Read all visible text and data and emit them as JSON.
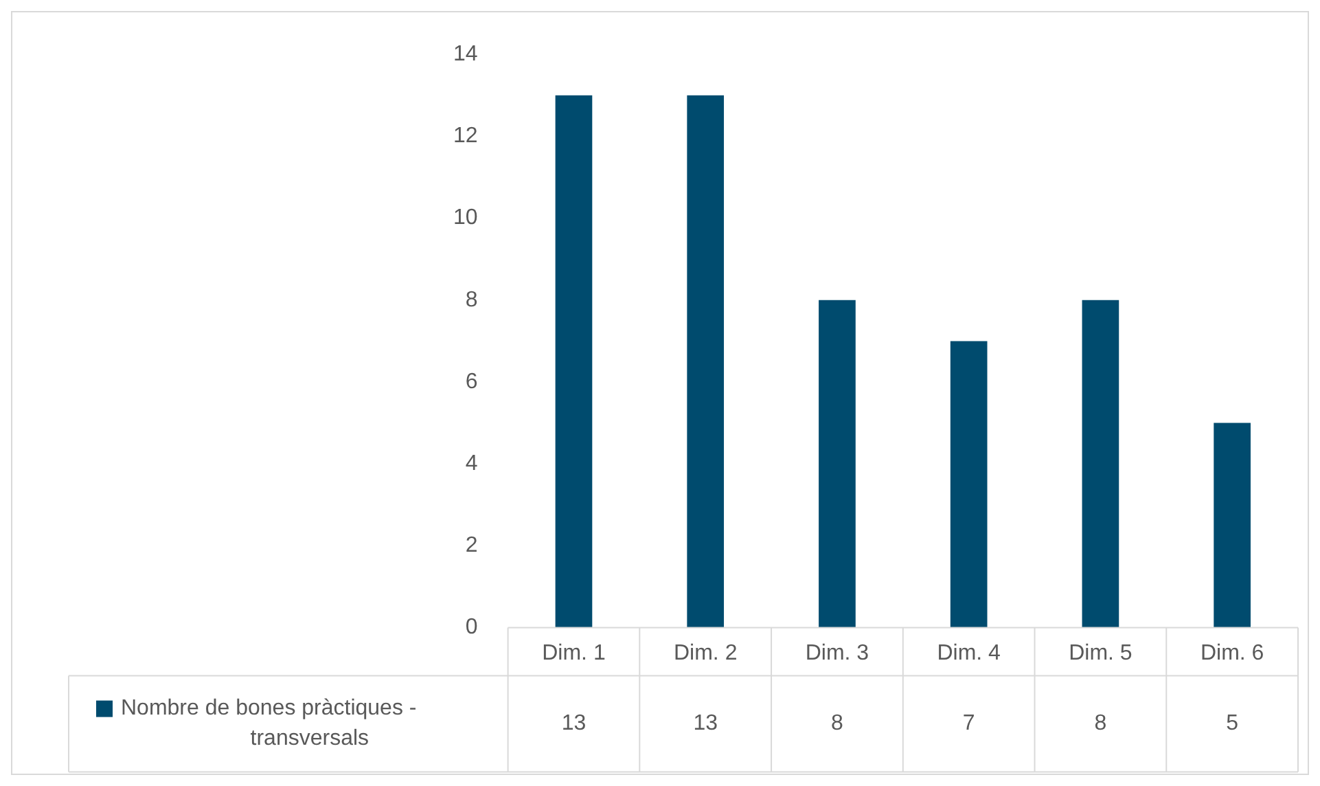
{
  "chart_data": {
    "type": "bar",
    "categories": [
      "Dim. 1",
      "Dim. 2",
      "Dim. 3",
      "Dim. 4",
      "Dim. 5",
      "Dim. 6"
    ],
    "series": [
      {
        "name": "Nombre de bones pràctiques - transversals",
        "color": "#004b6e",
        "values": [
          13,
          13,
          8,
          7,
          8,
          5
        ]
      }
    ],
    "ylim": [
      0,
      14
    ],
    "yticks": [
      0,
      2,
      4,
      6,
      8,
      10,
      12,
      14
    ],
    "grid": false,
    "data_labels": true
  }
}
